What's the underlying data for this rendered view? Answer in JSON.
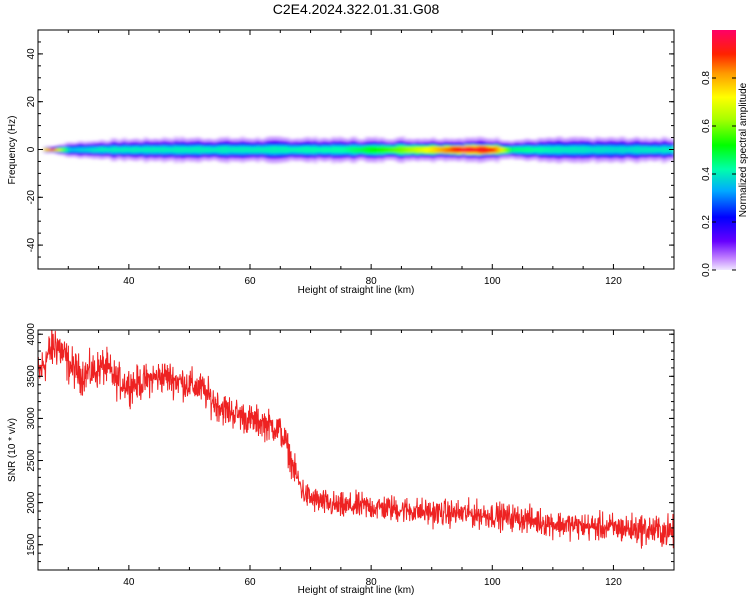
{
  "title": "C2E4.2024.322.01.31.G08",
  "colors": {
    "snr_line": "#ee2222",
    "axis": "#000000",
    "background": "#ffffff"
  },
  "chart_data": [
    {
      "type": "heatmap",
      "xlabel": "Height of straight line (km)",
      "ylabel": "Frequency (Hz)",
      "xlim": [
        25,
        130
      ],
      "ylim": [
        -50,
        50
      ],
      "xticks": [
        40,
        60,
        80,
        100,
        120
      ],
      "yticks": [
        -40,
        -20,
        0,
        20,
        40
      ],
      "grid": false,
      "description_values": {
        "centre_frequency_hz": 0,
        "band": [
          {
            "x": 27,
            "halfwidth_hz": 1.5,
            "amplitude": 0.95
          },
          {
            "x": 30,
            "halfwidth_hz": 3,
            "amplitude": 0.35
          },
          {
            "x": 35,
            "halfwidth_hz": 4,
            "amplitude": 0.4
          },
          {
            "x": 45,
            "halfwidth_hz": 5,
            "amplitude": 0.4
          },
          {
            "x": 60,
            "halfwidth_hz": 5,
            "amplitude": 0.4
          },
          {
            "x": 75,
            "halfwidth_hz": 5,
            "amplitude": 0.42
          },
          {
            "x": 85,
            "halfwidth_hz": 5,
            "amplitude": 0.6
          },
          {
            "x": 90,
            "halfwidth_hz": 5,
            "amplitude": 0.75
          },
          {
            "x": 95,
            "halfwidth_hz": 5,
            "amplitude": 0.95
          },
          {
            "x": 100,
            "halfwidth_hz": 5,
            "amplitude": 0.9
          },
          {
            "x": 103,
            "halfwidth_hz": 4,
            "amplitude": 0.45
          },
          {
            "x": 110,
            "halfwidth_hz": 5,
            "amplitude": 0.4
          },
          {
            "x": 120,
            "halfwidth_hz": 5,
            "amplitude": 0.38
          },
          {
            "x": 130,
            "halfwidth_hz": 5,
            "amplitude": 0.4
          }
        ]
      },
      "colorbar": {
        "label": "Normalized spectral amplitude",
        "range": [
          0,
          1
        ],
        "ticks": [
          "0.0",
          "0.2",
          "0.4",
          "0.6",
          "0.8"
        ],
        "tick_values": [
          0,
          0.2,
          0.4,
          0.6,
          0.8
        ]
      }
    },
    {
      "type": "line",
      "xlabel": "Height of straight line (km)",
      "ylabel": "SNR (10 * v/v)",
      "xlim": [
        25,
        130
      ],
      "ylim": [
        1200,
        4050
      ],
      "xticks": [
        40,
        60,
        80,
        100,
        120
      ],
      "yticks": [
        1500,
        2000,
        2500,
        3000,
        3500,
        4000
      ],
      "grid": false,
      "series": [
        {
          "x": [
            25,
            26,
            27,
            28,
            30,
            32,
            34,
            36,
            38,
            40,
            42,
            44,
            46,
            48,
            50,
            52,
            54,
            56,
            58,
            60,
            62,
            63,
            64,
            65,
            66,
            67,
            68,
            69,
            70,
            72,
            75,
            78,
            80,
            85,
            90,
            95,
            100,
            105,
            110,
            115,
            120,
            125,
            130
          ],
          "y": [
            3500,
            3650,
            3800,
            3900,
            3650,
            3520,
            3550,
            3620,
            3450,
            3400,
            3420,
            3480,
            3500,
            3450,
            3400,
            3350,
            3200,
            3100,
            3050,
            2980,
            2950,
            2920,
            2900,
            2850,
            2700,
            2450,
            2250,
            2100,
            2050,
            2000,
            1950,
            1960,
            1950,
            1920,
            1880,
            1870,
            1850,
            1810,
            1750,
            1720,
            1700,
            1680,
            1650
          ],
          "noise": [
            200,
            200,
            200,
            220,
            180,
            170,
            170,
            170,
            160,
            160,
            150,
            150,
            150,
            150,
            150,
            150,
            150,
            150,
            140,
            140,
            140,
            140,
            140,
            140,
            140,
            130,
            130,
            120,
            120,
            120,
            120,
            120,
            120,
            120,
            120,
            120,
            120,
            120,
            120,
            120,
            130,
            140,
            150
          ]
        }
      ]
    }
  ]
}
